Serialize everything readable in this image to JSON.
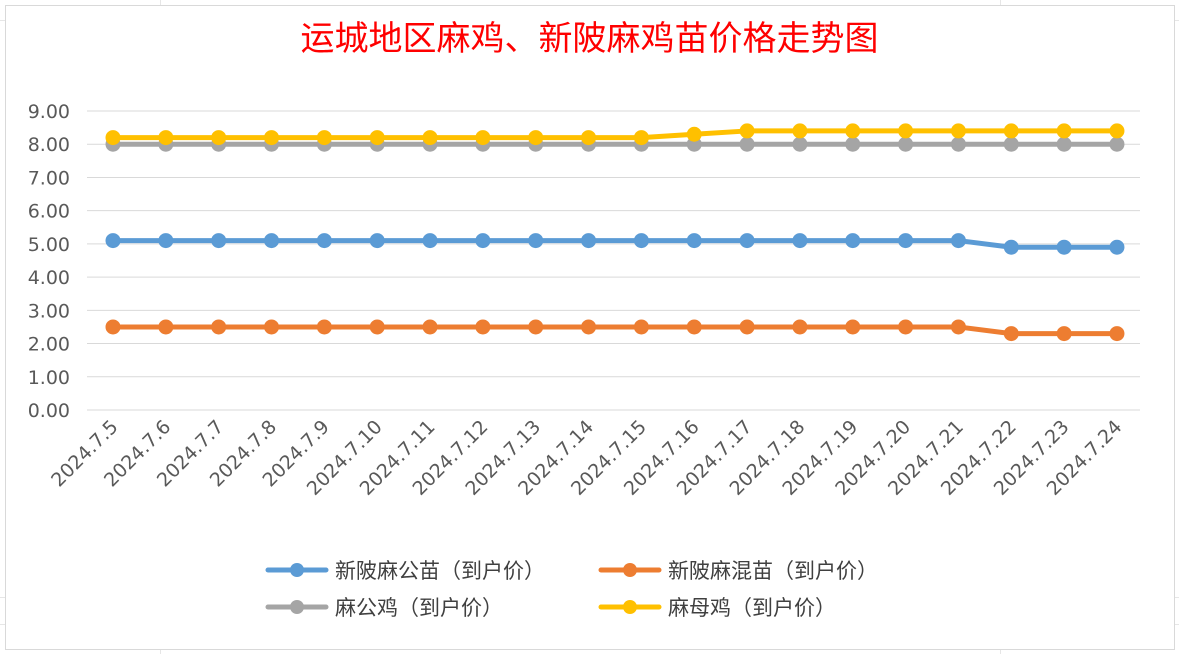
{
  "chart_data": {
    "type": "line",
    "title": "运城地区麻鸡、新陂麻鸡苗价格走势图",
    "xlabel": "",
    "ylabel": "",
    "ylim": [
      0,
      9
    ],
    "yticks": [
      "0.00",
      "1.00",
      "2.00",
      "3.00",
      "4.00",
      "5.00",
      "6.00",
      "7.00",
      "8.00",
      "9.00"
    ],
    "categories": [
      "2024.7.5",
      "2024.7.6",
      "2024.7.7",
      "2024.7.8",
      "2024.7.9",
      "2024.7.10",
      "2024.7.11",
      "2024.7.12",
      "2024.7.13",
      "2024.7.14",
      "2024.7.15",
      "2024.7.16",
      "2024.7.17",
      "2024.7.18",
      "2024.7.19",
      "2024.7.20",
      "2024.7.21",
      "2024.7.22",
      "2024.7.23",
      "2024.7.24"
    ],
    "grid": true,
    "legend_position": "bottom",
    "series": [
      {
        "name": "新陂麻公苗（到户价）",
        "color": "#5b9bd5",
        "values": [
          5.1,
          5.1,
          5.1,
          5.1,
          5.1,
          5.1,
          5.1,
          5.1,
          5.1,
          5.1,
          5.1,
          5.1,
          5.1,
          5.1,
          5.1,
          5.1,
          5.1,
          4.9,
          4.9,
          4.9
        ]
      },
      {
        "name": "新陂麻混苗（到户价）",
        "color": "#ed7d31",
        "values": [
          2.5,
          2.5,
          2.5,
          2.5,
          2.5,
          2.5,
          2.5,
          2.5,
          2.5,
          2.5,
          2.5,
          2.5,
          2.5,
          2.5,
          2.5,
          2.5,
          2.5,
          2.3,
          2.3,
          2.3
        ]
      },
      {
        "name": "麻公鸡（到户价）",
        "color": "#a5a5a5",
        "values": [
          8.0,
          8.0,
          8.0,
          8.0,
          8.0,
          8.0,
          8.0,
          8.0,
          8.0,
          8.0,
          8.0,
          8.0,
          8.0,
          8.0,
          8.0,
          8.0,
          8.0,
          8.0,
          8.0,
          8.0
        ]
      },
      {
        "name": "麻母鸡（到户价）",
        "color": "#ffc000",
        "values": [
          8.2,
          8.2,
          8.2,
          8.2,
          8.2,
          8.2,
          8.2,
          8.2,
          8.2,
          8.2,
          8.2,
          8.3,
          8.4,
          8.4,
          8.4,
          8.4,
          8.4,
          8.4,
          8.4,
          8.4
        ]
      }
    ]
  }
}
